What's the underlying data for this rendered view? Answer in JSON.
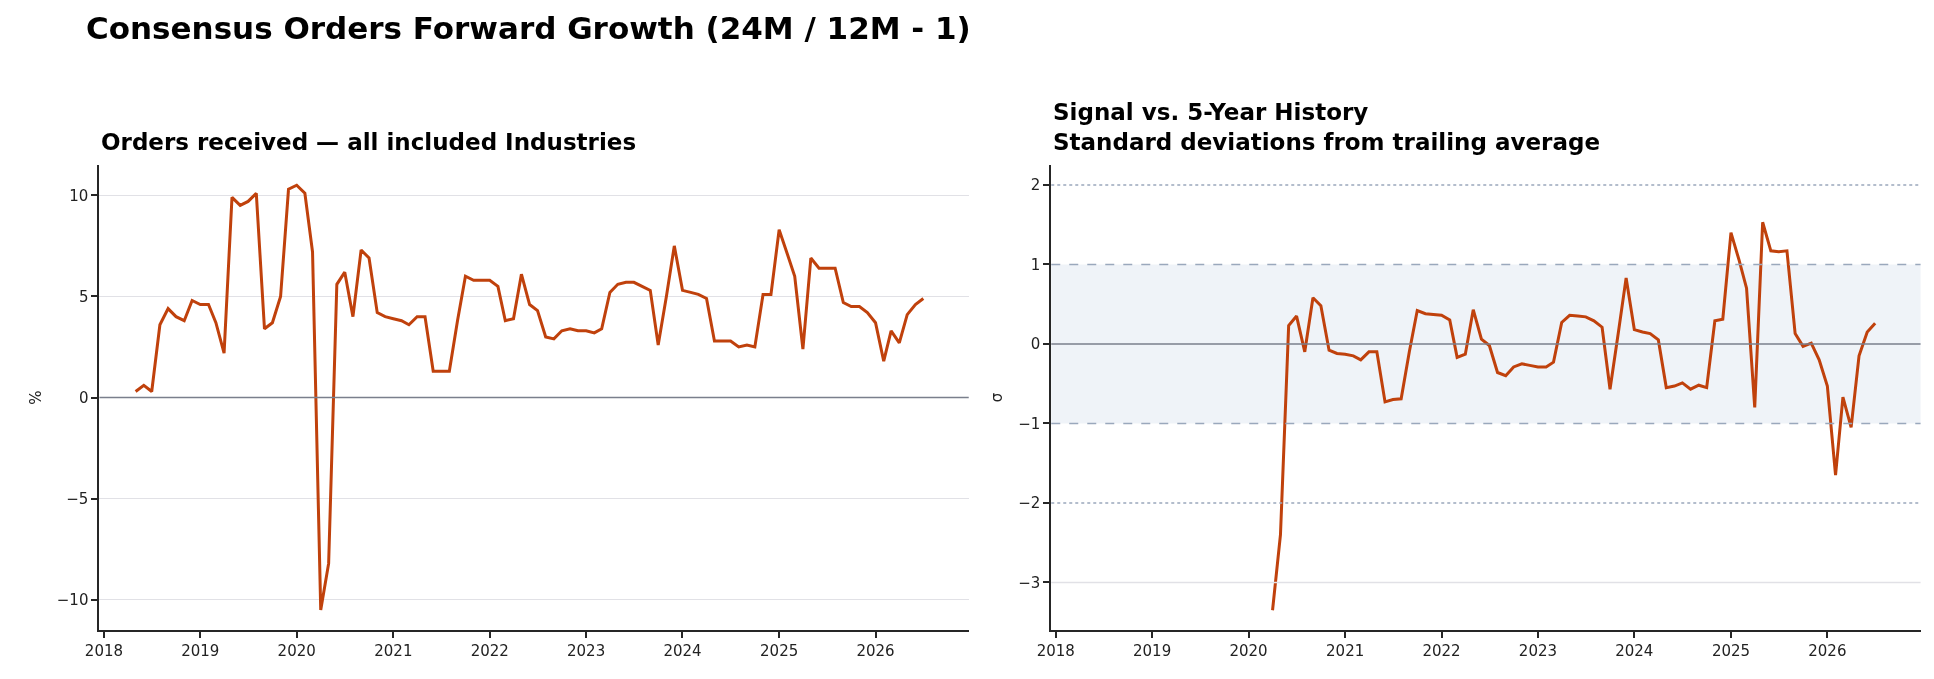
{
  "chart_data": [
    {
      "type": "line",
      "title": "Consensus Orders Forward Growth (24M / 12M - 1)",
      "subtitle": "Orders received — all included Industries",
      "ylabel": "%",
      "x": [
        "2018-05",
        "2018-06",
        "2018-07",
        "2018-08",
        "2018-09",
        "2018-10",
        "2018-11",
        "2018-12",
        "2019-01",
        "2019-02",
        "2019-03",
        "2019-04",
        "2019-05",
        "2019-06",
        "2019-07",
        "2019-08",
        "2019-09",
        "2019-10",
        "2019-11",
        "2019-12",
        "2020-01",
        "2020-02",
        "2020-03",
        "2020-04",
        "2020-05",
        "2020-06",
        "2020-07",
        "2020-08",
        "2020-09",
        "2020-10",
        "2020-11",
        "2020-12",
        "2021-01",
        "2021-02",
        "2021-03",
        "2021-04",
        "2021-05",
        "2021-06",
        "2021-07",
        "2021-08",
        "2021-09",
        "2021-10",
        "2021-11",
        "2021-12",
        "2022-01",
        "2022-02",
        "2022-03",
        "2022-04",
        "2022-05",
        "2022-06",
        "2022-07",
        "2022-08",
        "2022-09",
        "2022-10",
        "2022-11",
        "2022-12",
        "2023-01",
        "2023-02",
        "2023-03",
        "2023-04",
        "2023-05",
        "2023-06",
        "2023-07",
        "2023-08",
        "2023-09",
        "2023-10",
        "2023-11",
        "2023-12",
        "2024-01",
        "2024-02",
        "2024-03",
        "2024-04",
        "2024-05",
        "2024-06",
        "2024-07",
        "2024-08",
        "2024-09",
        "2024-10",
        "2024-11",
        "2024-12",
        "2025-01",
        "2025-02",
        "2025-03",
        "2025-04",
        "2025-05",
        "2025-06",
        "2025-07",
        "2025-08",
        "2025-09",
        "2025-10",
        "2025-11",
        "2025-12",
        "2026-01",
        "2026-02",
        "2026-03",
        "2026-04",
        "2026-05",
        "2026-06",
        "2026-07"
      ],
      "series": [
        {
          "color": "#c0410c",
          "values": [
            0.3,
            0.6,
            0.3,
            3.6,
            4.4,
            4.0,
            3.8,
            4.8,
            4.6,
            4.6,
            3.7,
            2.2,
            9.9,
            9.5,
            9.7,
            10.1,
            3.4,
            3.7,
            5.0,
            10.3,
            10.5,
            10.1,
            7.2,
            -10.5,
            -8.2,
            5.6,
            6.2,
            4.0,
            7.3,
            6.9,
            4.2,
            4.0,
            3.9,
            3.8,
            3.6,
            4.0,
            4.0,
            1.3,
            1.3,
            1.3,
            3.8,
            6.0,
            5.8,
            5.8,
            5.8,
            5.5,
            3.8,
            3.9,
            6.1,
            4.6,
            4.3,
            3.0,
            2.9,
            3.3,
            3.4,
            3.3,
            3.3,
            3.2,
            3.4,
            5.2,
            5.6,
            5.7,
            5.7,
            5.5,
            5.3,
            2.6,
            5.0,
            7.5,
            5.3,
            5.2,
            5.1,
            4.9,
            2.8,
            2.8,
            2.8,
            2.5,
            2.6,
            2.5,
            5.1,
            5.1,
            8.3,
            7.1,
            6.0,
            2.4,
            6.9,
            6.4,
            6.4,
            6.4,
            4.7,
            4.5,
            4.5,
            4.2,
            3.7,
            1.8,
            3.3,
            2.7,
            4.1,
            4.6,
            4.9
          ]
        }
      ],
      "xlim": [
        "2017-12-15",
        "2026-12-20"
      ],
      "xticks": [
        {
          "value": "2018-01-01",
          "label": "2018"
        },
        {
          "value": "2019-01-01",
          "label": "2019"
        },
        {
          "value": "2020-01-01",
          "label": "2020"
        },
        {
          "value": "2021-01-01",
          "label": "2021"
        },
        {
          "value": "2022-01-01",
          "label": "2022"
        },
        {
          "value": "2023-01-01",
          "label": "2023"
        },
        {
          "value": "2024-01-01",
          "label": "2024"
        },
        {
          "value": "2025-01-01",
          "label": "2025"
        },
        {
          "value": "2026-01-01",
          "label": "2026"
        }
      ],
      "ylim": [
        -11.5,
        11.5
      ],
      "yticks": [
        -10,
        -5,
        0,
        5,
        10
      ],
      "grid": "y",
      "ref_lines": [
        {
          "axis": "y",
          "value": 0,
          "color": "#7a7f8c",
          "line_style": "solid"
        }
      ]
    },
    {
      "type": "line",
      "title": "Signal vs. 5-Year History",
      "subtitle": "Standard deviations from trailing average",
      "ylabel": "σ",
      "x": [
        "2020-04",
        "2020-05",
        "2020-06",
        "2020-07",
        "2020-08",
        "2020-09",
        "2020-10",
        "2020-11",
        "2020-12",
        "2021-01",
        "2021-02",
        "2021-03",
        "2021-04",
        "2021-05",
        "2021-06",
        "2021-07",
        "2021-08",
        "2021-09",
        "2021-10",
        "2021-11",
        "2021-12",
        "2022-01",
        "2022-02",
        "2022-03",
        "2022-04",
        "2022-05",
        "2022-06",
        "2022-07",
        "2022-08",
        "2022-09",
        "2022-10",
        "2022-11",
        "2022-12",
        "2023-01",
        "2023-02",
        "2023-03",
        "2023-04",
        "2023-05",
        "2023-06",
        "2023-07",
        "2023-08",
        "2023-09",
        "2023-10",
        "2023-11",
        "2023-12",
        "2024-01",
        "2024-02",
        "2024-03",
        "2024-04",
        "2024-05",
        "2024-06",
        "2024-07",
        "2024-08",
        "2024-09",
        "2024-10",
        "2024-11",
        "2024-12",
        "2025-01",
        "2025-02",
        "2025-03",
        "2025-04",
        "2025-05",
        "2025-06",
        "2025-07",
        "2025-08",
        "2025-09",
        "2025-10",
        "2025-11",
        "2025-12",
        "2026-01",
        "2026-02",
        "2026-03",
        "2026-04",
        "2026-05",
        "2026-06",
        "2026-07"
      ],
      "series": [
        {
          "color": "#c0410c",
          "values": [
            -3.35,
            -2.4,
            0.23,
            0.35,
            -0.1,
            0.58,
            0.48,
            -0.08,
            -0.12,
            -0.13,
            -0.15,
            -0.2,
            -0.1,
            -0.1,
            -0.73,
            -0.7,
            -0.69,
            -0.1,
            0.42,
            0.38,
            0.37,
            0.36,
            0.3,
            -0.17,
            -0.13,
            0.43,
            0.06,
            -0.02,
            -0.36,
            -0.4,
            -0.29,
            -0.25,
            -0.27,
            -0.29,
            -0.29,
            -0.23,
            0.27,
            0.36,
            0.35,
            0.34,
            0.29,
            0.21,
            -0.57,
            0.13,
            0.83,
            0.18,
            0.15,
            0.13,
            0.05,
            -0.55,
            -0.53,
            -0.49,
            -0.57,
            -0.52,
            -0.55,
            0.29,
            0.31,
            1.4,
            1.05,
            0.7,
            -0.8,
            1.53,
            1.17,
            1.16,
            1.17,
            0.13,
            -0.03,
            0.01,
            -0.2,
            -0.53,
            -1.65,
            -0.67,
            -1.05,
            -0.15,
            0.15,
            0.26
          ]
        }
      ],
      "xlim": [
        "2017-12-15",
        "2026-12-20"
      ],
      "xticks": [
        {
          "value": "2018-01-01",
          "label": "2018"
        },
        {
          "value": "2019-01-01",
          "label": "2019"
        },
        {
          "value": "2020-01-01",
          "label": "2020"
        },
        {
          "value": "2021-01-01",
          "label": "2021"
        },
        {
          "value": "2022-01-01",
          "label": "2022"
        },
        {
          "value": "2023-01-01",
          "label": "2023"
        },
        {
          "value": "2024-01-01",
          "label": "2024"
        },
        {
          "value": "2025-01-01",
          "label": "2025"
        },
        {
          "value": "2026-01-01",
          "label": "2026"
        }
      ],
      "ylim": [
        -3.6,
        2.25
      ],
      "yticks": [
        -3,
        -2,
        -1,
        0,
        1,
        2
      ],
      "bands": [
        {
          "axis": "y",
          "from": -1,
          "to": 1,
          "color": "#eff3f8"
        }
      ],
      "ref_lines": [
        {
          "axis": "y",
          "value": 0,
          "color": "#7a7f8c",
          "line_style": "solid"
        },
        {
          "axis": "y",
          "value": -3,
          "color": "#e1e1e6",
          "line_style": "solid"
        },
        {
          "axis": "y",
          "value": 1,
          "color": "#9aa8bc",
          "line_style": "dashed"
        },
        {
          "axis": "y",
          "value": -1,
          "color": "#9aa8bc",
          "line_style": "dashed"
        },
        {
          "axis": "y",
          "value": 2,
          "color": "#9aa8bc",
          "line_style": "dotted"
        },
        {
          "axis": "y",
          "value": -2,
          "color": "#9aa8bc",
          "line_style": "dotted"
        }
      ]
    }
  ]
}
